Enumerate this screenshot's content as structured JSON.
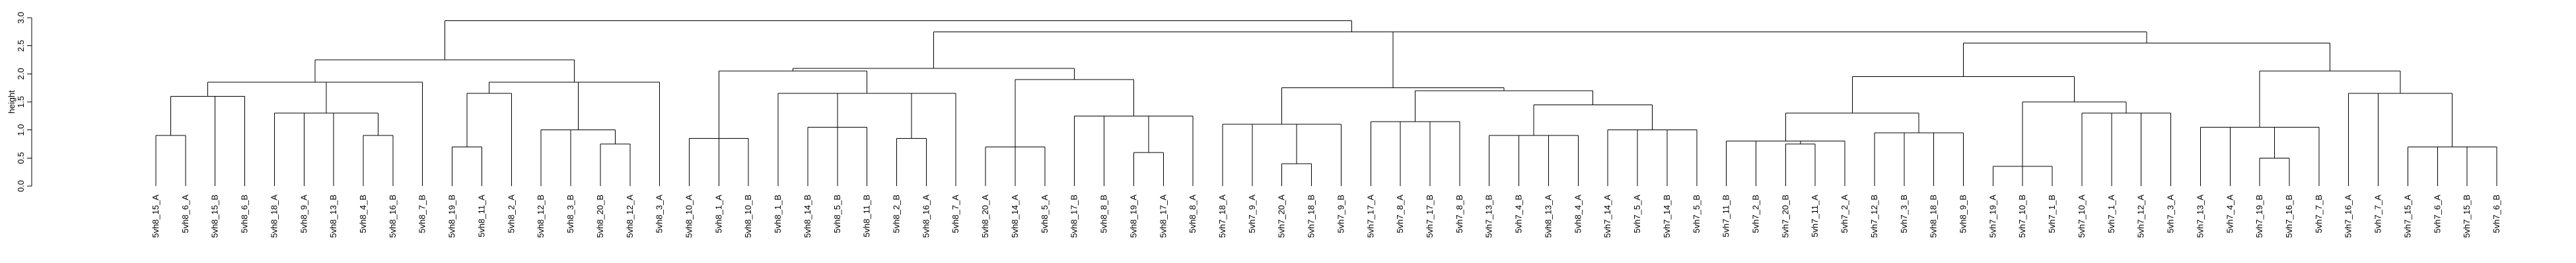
{
  "chart_data": {
    "type": "dendrogram",
    "ylabel": "height",
    "ylim": [
      0,
      3.0
    ],
    "yticks": [
      "0.0",
      "0.5",
      "1.0",
      "1.5",
      "2.0",
      "2.5",
      "3.0"
    ],
    "leaves": [
      "5vh8_15_A",
      "5vh8_6_A",
      "5vh8_15_B",
      "5vh8_6_B",
      "5vh8_18_A",
      "5vh8_9_A",
      "5vh8_13_B",
      "5vh8_4_B",
      "5vh8_16_B",
      "5vh8_7_B",
      "5vh8_19_B",
      "5vh8_11_A",
      "5vh8_2_A",
      "5vh8_12_B",
      "5vh8_3_B",
      "5vh8_20_B",
      "5vh8_12_A",
      "5vh8_3_A",
      "5vh8_10_A",
      "5vh8_1_A",
      "5vh8_10_B",
      "5vh8_1_B",
      "5vh8_14_B",
      "5vh8_5_B",
      "5vh8_11_B",
      "5vh8_2_B",
      "5vh8_16_A",
      "5vh8_7_A",
      "5vh8_20_A",
      "5vh8_14_A",
      "5vh8_5_A",
      "5vh8_17_B",
      "5vh8_8_B",
      "5vh8_19_A",
      "5vh8_17_A",
      "5vh8_8_A",
      "5vh7_18_A",
      "5vh7_9_A",
      "5vh7_20_A",
      "5vh7_18_B",
      "5vh7_9_B",
      "5vh7_17_A",
      "5vh7_8_A",
      "5vh7_17_B",
      "5vh7_8_B",
      "5vh7_13_B",
      "5vh7_4_B",
      "5vh8_13_A",
      "5vh8_4_A",
      "5vh7_14_A",
      "5vh7_5_A",
      "5vh7_14_B",
      "5vh7_5_B",
      "5vh7_11_B",
      "5vh7_2_B",
      "5vh7_20_B",
      "5vh7_11_A",
      "5vh7_2_A",
      "5vh7_12_B",
      "5vh7_3_B",
      "5vh8_18_B",
      "5vh8_9_B",
      "5vh7_19_A",
      "5vh7_10_B",
      "5vh7_1_B",
      "5vh7_10_A",
      "5vh7_1_A",
      "5vh7_12_A",
      "5vh7_3_A",
      "5vh7_13_A",
      "5vh7_4_A",
      "5vh7_19_B",
      "5vh7_16_B",
      "5vh7_7_B",
      "5vh7_16_A",
      "5vh7_7_A",
      "5vh7_15_A",
      "5vh7_6_A",
      "5vh7_15_B",
      "5vh7_6_B"
    ],
    "merges": [
      [
        0,
        1,
        0.9
      ],
      [
        2,
        3,
        1.6
      ],
      [
        4,
        5,
        1.3
      ],
      [
        6,
        7,
        0.9
      ],
      [
        8,
        9,
        1.3
      ],
      [
        10,
        11,
        1.9
      ],
      [
        12,
        13,
        0.7
      ],
      [
        14,
        15,
        1.7
      ],
      [
        16,
        17,
        0.75
      ],
      [
        18,
        19,
        1.0
      ],
      [
        20,
        21,
        1.7
      ],
      [
        22,
        23,
        2.3
      ],
      [
        24,
        25,
        0.85
      ],
      [
        26,
        27,
        0.85
      ],
      [
        28,
        29,
        1.05
      ],
      [
        30,
        31,
        0.85
      ],
      [
        32,
        33,
        1.05
      ],
      [
        34,
        35,
        1.65
      ],
      [
        36,
        37,
        0.7
      ],
      [
        38,
        39,
        0.6
      ],
      [
        40,
        41,
        1.25
      ],
      [
        42,
        43,
        1.9
      ],
      [
        44,
        45,
        2.1
      ],
      [
        46,
        47,
        2.95
      ],
      [
        48,
        49,
        0.4
      ],
      [
        50,
        51,
        1.1
      ],
      [
        52,
        53,
        1.2
      ],
      [
        54,
        55,
        0.9
      ],
      [
        56,
        57,
        1.5
      ],
      [
        58,
        59,
        1.7
      ],
      [
        60,
        61,
        1.8
      ],
      [
        62,
        63,
        0.85
      ],
      [
        64,
        65,
        1.0
      ],
      [
        66,
        67,
        1.5
      ],
      [
        68,
        69,
        1.75
      ],
      [
        70,
        71,
        2.75
      ],
      [
        72,
        73,
        0.8
      ],
      [
        74,
        75,
        0.8
      ],
      [
        76,
        77,
        1.3
      ],
      [
        78,
        79,
        1.0
      ],
      [
        80,
        81,
        2.0
      ],
      [
        82,
        83,
        0.4
      ],
      [
        84,
        85,
        1.5
      ],
      [
        86,
        87,
        1.3
      ],
      [
        88,
        89,
        1.95
      ],
      [
        90,
        91,
        1.05
      ],
      [
        92,
        93,
        0.55
      ],
      [
        94,
        95,
        0.75
      ],
      [
        96,
        97,
        1.65
      ],
      [
        98,
        99,
        2.05
      ],
      [
        100,
        101,
        2.55
      ],
      [
        102,
        103,
        2.75
      ],
      [
        104,
        105,
        2.95
      ],
      [
        0,
        0,
        0
      ],
      [
        0,
        0,
        0
      ],
      [
        0,
        0,
        0
      ],
      [
        0,
        0,
        0
      ],
      [
        0,
        0,
        0
      ],
      [
        0,
        0,
        0
      ],
      [
        0,
        0,
        0
      ],
      [
        0,
        0,
        0
      ],
      [
        0,
        0,
        0
      ],
      [
        0,
        0,
        0
      ],
      [
        0,
        0,
        0
      ],
      [
        0,
        0,
        0
      ],
      [
        0,
        0,
        0
      ],
      [
        0,
        0,
        0
      ],
      [
        0,
        0,
        0
      ],
      [
        0,
        0,
        0
      ],
      [
        0,
        0,
        0
      ],
      [
        0,
        0,
        0
      ],
      [
        0,
        0,
        0
      ],
      [
        0,
        0,
        0
      ],
      [
        0,
        0,
        0
      ],
      [
        0,
        0,
        0
      ],
      [
        0,
        0,
        0
      ],
      [
        0,
        0,
        0
      ],
      [
        0,
        0,
        0
      ],
      [
        0,
        0,
        0
      ],
      [
        0,
        0,
        0
      ],
      [
        0,
        0,
        0
      ]
    ],
    "tree": {
      "h": 2.95,
      "c": [
        {
          "h": 2.25,
          "c": [
            {
              "h": 1.85,
              "c": [
                {
                  "h": 1.6,
                  "c": [
                    {
                      "h": 0.9,
                      "c": [
                        0,
                        1
                      ]
                    },
                    2,
                    3
                  ]
                },
                {
                  "h": 1.3,
                  "c": [
                    {
                      "h": 0.9,
                      "c": [
                        7,
                        8
                      ]
                    },
                    4,
                    5,
                    6
                  ]
                },
                9
              ]
            },
            {
              "h": 1.85,
              "c": [
                {
                  "h": 1.65,
                  "c": [
                    {
                      "h": 0.7,
                      "c": [
                        10,
                        11
                      ]
                    },
                    12
                  ]
                },
                {
                  "h": 1.0,
                  "c": [
                    13,
                    {
                      "h": 0.75,
                      "c": [
                        15,
                        16
                      ]
                    },
                    14
                  ]
                },
                17
              ]
            }
          ]
        },
        {
          "h": 2.75,
          "c": [
            {
              "h": 2.1,
              "c": [
                {
                  "h": 2.05,
                  "c": [
                    {
                      "h": 0.85,
                      "c": [
                        18,
                        19,
                        20
                      ]
                    },
                    {
                      "h": 1.65,
                      "c": [
                        21,
                        {
                          "h": 1.05,
                          "c": [
                            22,
                            23,
                            24
                          ]
                        },
                        {
                          "h": 0.85,
                          "c": [
                            25,
                            26
                          ]
                        },
                        27
                      ]
                    }
                  ]
                },
                {
                  "h": 1.9,
                  "c": [
                    {
                      "h": 0.7,
                      "c": [
                        28,
                        29,
                        30
                      ]
                    },
                    {
                      "h": 1.25,
                      "c": [
                        31,
                        32,
                        {
                          "h": 0.6,
                          "c": [
                            33,
                            34
                          ]
                        },
                        35
                      ]
                    }
                  ]
                }
              ]
            },
            {
              "h": 2.75,
              "c": [
                {
                  "h": 1.75,
                  "c": [
                    {
                      "h": 1.1,
                      "c": [
                        36,
                        37,
                        {
                          "h": 0.4,
                          "c": [
                            38,
                            39
                          ]
                        },
                        40
                      ]
                    },
                    {
                      "h": 1.7,
                      "c": [
                        {
                          "h": 1.15,
                          "c": [
                            41,
                            42,
                            43,
                            44
                          ]
                        },
                        {
                          "h": 1.45,
                          "c": [
                            {
                              "h": 0.9,
                              "c": [
                                45,
                                46,
                                47,
                                48
                              ]
                            },
                            {
                              "h": 1.0,
                              "c": [
                                49,
                                50,
                                51,
                                52
                              ]
                            }
                          ]
                        }
                      ]
                    }
                  ]
                },
                {
                  "h": 2.55,
                  "c": [
                    {
                      "h": 1.95,
                      "c": [
                        {
                          "h": 1.3,
                          "c": [
                            {
                              "h": 0.8,
                              "c": [
                                53,
                                54,
                                {
                                  "h": 0.75,
                                  "c": [
                                    55,
                                    56
                                  ]
                                },
                                57
                              ]
                            },
                            {
                              "h": 0.95,
                              "c": [
                                58,
                                59,
                                60,
                                61
                              ]
                            }
                          ]
                        },
                        {
                          "h": 1.5,
                          "c": [
                            {
                              "h": 0.35,
                              "c": [
                                62,
                                63,
                                64
                              ]
                            },
                            {
                              "h": 1.3,
                              "c": [
                                65,
                                66,
                                67,
                                68
                              ]
                            }
                          ]
                        }
                      ]
                    },
                    {
                      "h": 2.05,
                      "c": [
                        {
                          "h": 1.05,
                          "c": [
                            69,
                            70,
                            {
                              "h": 0.5,
                              "c": [
                                71,
                                72
                              ]
                            },
                            73
                          ]
                        },
                        {
                          "h": 1.65,
                          "c": [
                            74,
                            75,
                            {
                              "h": 0.7,
                              "c": [
                                76,
                                77,
                                78,
                                79
                              ]
                            }
                          ]
                        }
                      ]
                    }
                  ]
                }
              ]
            }
          ]
        }
      ]
    }
  }
}
